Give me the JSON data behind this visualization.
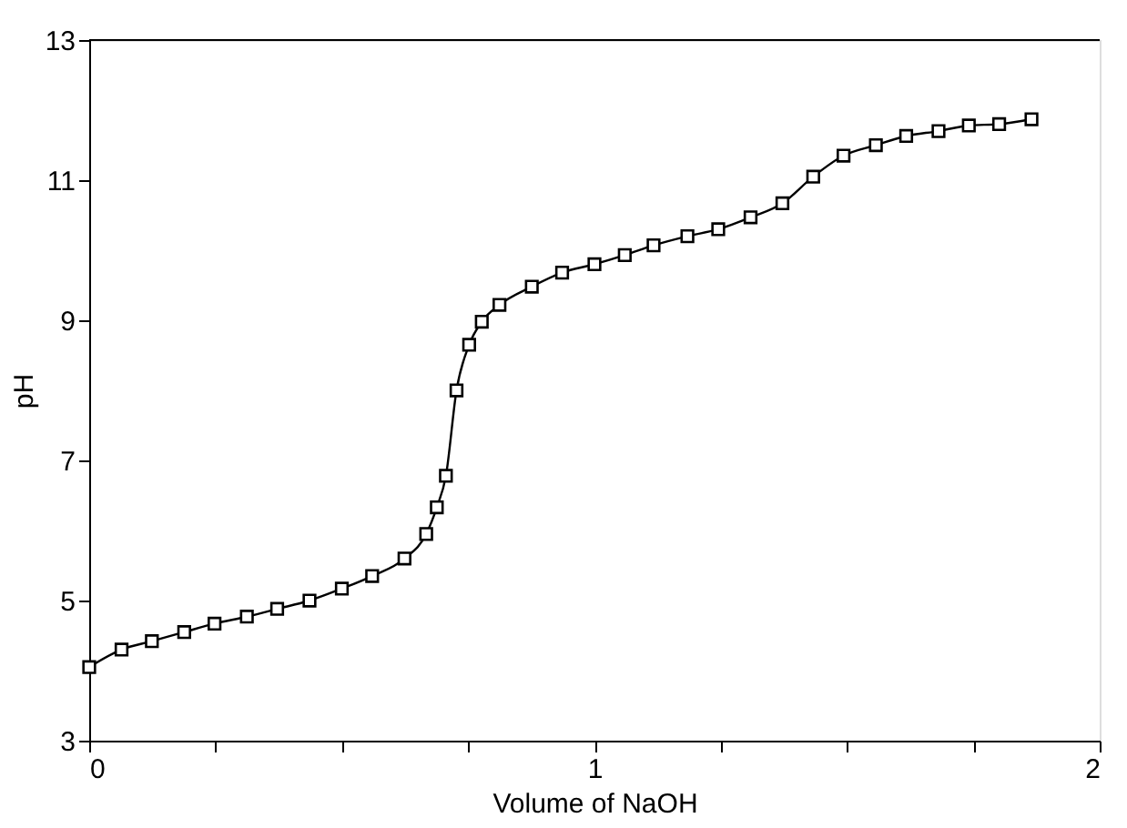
{
  "chart_data": {
    "type": "line",
    "xlabel": "Volume of NaOH",
    "ylabel": "pH",
    "x": [
      0,
      0.064,
      0.124,
      0.188,
      0.248,
      0.312,
      0.372,
      0.436,
      0.5,
      0.56,
      0.624,
      0.667,
      0.688,
      0.706,
      0.727,
      0.752,
      0.777,
      0.812,
      0.876,
      0.936,
      1.0,
      1.06,
      1.117,
      1.184,
      1.245,
      1.309,
      1.372,
      1.433,
      1.493,
      1.557,
      1.617,
      1.681,
      1.741,
      1.801,
      1.865
    ],
    "series": [
      {
        "color": "#000000",
        "values": [
          4.05,
          4.3,
          4.42,
          4.55,
          4.67,
          4.77,
          4.88,
          5.0,
          5.17,
          5.35,
          5.6,
          5.95,
          6.33,
          6.78,
          8.0,
          8.65,
          8.98,
          9.22,
          9.48,
          9.68,
          9.8,
          9.93,
          10.07,
          10.2,
          10.3,
          10.47,
          10.67,
          11.05,
          11.35,
          11.5,
          11.63,
          11.7,
          11.78,
          11.8,
          11.87
        ]
      }
    ],
    "xlim": [
      0,
      2
    ],
    "ylim": [
      3,
      13
    ],
    "xticks": [
      0,
      {
        "value": 0.25,
        "label": null
      },
      {
        "value": 0.5,
        "label": null
      },
      {
        "value": 0.75,
        "label": null
      },
      1,
      {
        "value": 1.25,
        "label": null
      },
      {
        "value": 1.5,
        "label": null
      },
      {
        "value": 1.75,
        "label": null
      },
      2
    ],
    "yticks": [
      3,
      5,
      7,
      9,
      11,
      13
    ],
    "grid": false,
    "marker": "square",
    "line_style": "solid"
  }
}
